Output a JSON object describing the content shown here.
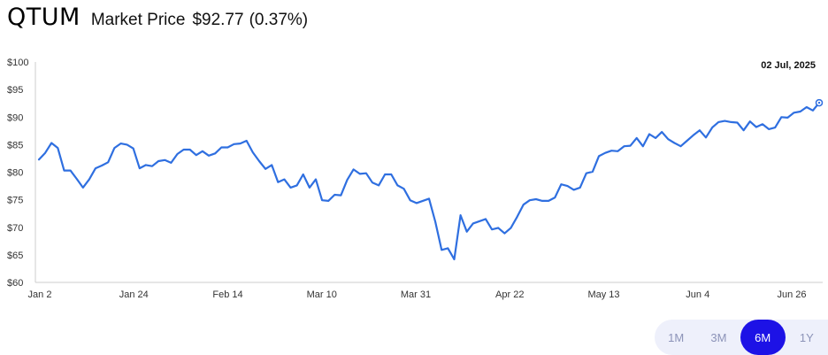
{
  "header": {
    "ticker": "QTUM",
    "label": "Market Price",
    "price": "$92.77",
    "change": "(0.37%)"
  },
  "range_selector": {
    "options": [
      "1M",
      "3M",
      "6M",
      "1Y"
    ],
    "selected": "6M"
  },
  "colors": {
    "line": "#2f6fe0",
    "axis": "#cccccc",
    "active_range": "#1d12e6",
    "range_bg": "#eef0fb"
  },
  "chart_data": {
    "type": "line",
    "title": "",
    "xlabel": "",
    "ylabel": "",
    "ylim": [
      60,
      100
    ],
    "y_ticks": [
      "$100",
      "$95",
      "$90",
      "$85",
      "$80",
      "$75",
      "$70",
      "$65",
      "$60"
    ],
    "x_tick_labels": [
      "Jan 2",
      "Jan 24",
      "Feb 14",
      "Mar 10",
      "Mar 31",
      "Apr 22",
      "May 13",
      "Jun 4",
      "Jun 26"
    ],
    "grid": false,
    "last_point_label": "02 Jul, 2025",
    "series": [
      {
        "values": [
          82.3,
          83.5,
          85.3,
          84.4,
          80.3,
          80.3,
          78.8,
          77.2,
          78.7,
          80.7,
          81.2,
          81.8,
          84.4,
          85.2,
          85.0,
          84.3,
          80.7,
          81.3,
          81.1,
          82.0,
          82.2,
          81.7,
          83.3,
          84.1,
          84.1,
          83.1,
          83.8,
          83.0,
          83.4,
          84.5,
          84.5,
          85.1,
          85.2,
          85.7,
          83.6,
          82.0,
          80.6,
          81.3,
          78.2,
          78.7,
          77.2,
          77.6,
          79.6,
          77.2,
          78.7,
          74.9,
          74.8,
          75.9,
          75.8,
          78.6,
          80.5,
          79.7,
          79.8,
          78.1,
          77.6,
          79.6,
          79.6,
          77.6,
          77.0,
          74.9,
          74.4,
          74.8,
          75.2,
          71.0,
          65.9,
          66.2,
          64.2,
          72.2,
          69.2,
          70.7,
          71.1,
          71.5,
          69.6,
          69.9,
          68.9,
          69.9,
          71.9,
          74.1,
          74.9,
          75.1,
          74.8,
          74.8,
          75.4,
          77.8,
          77.5,
          76.8,
          77.2,
          79.8,
          80.1,
          82.9,
          83.5,
          83.9,
          83.8,
          84.7,
          84.8,
          86.2,
          84.7,
          86.9,
          86.2,
          87.3,
          86.0,
          85.3,
          84.7,
          85.7,
          86.7,
          87.6,
          86.3,
          88.1,
          89.1,
          89.3,
          89.1,
          89.0,
          87.6,
          89.2,
          88.2,
          88.7,
          87.8,
          88.1,
          90.0,
          89.9,
          90.8,
          91.0,
          91.8,
          91.2,
          92.6
        ]
      }
    ]
  }
}
